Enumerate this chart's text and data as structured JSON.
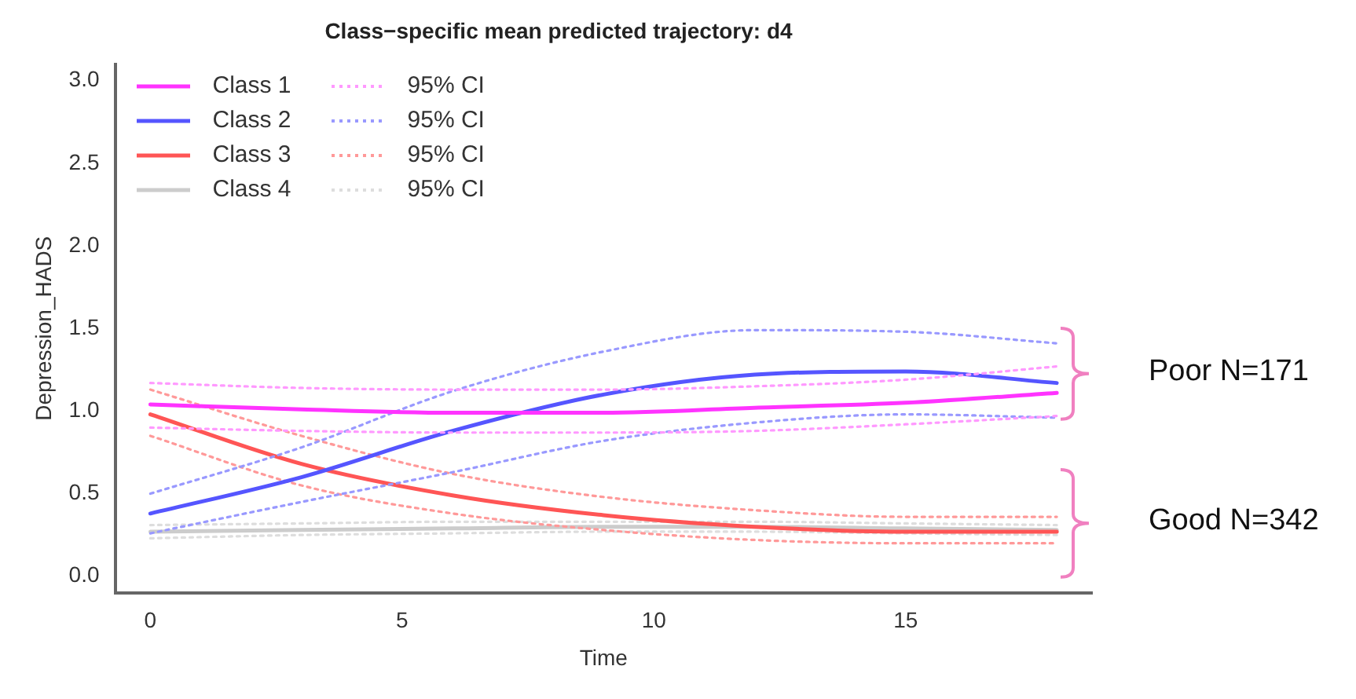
{
  "chart_data": {
    "type": "line",
    "title": "Class−specific mean predicted trajectory: d4",
    "xlabel": "Time",
    "ylabel": "Depression_HADS",
    "x": [
      0,
      3,
      6,
      9,
      12,
      15,
      18
    ],
    "xlim": [
      -0.7,
      18.7
    ],
    "xticks": [
      0,
      5,
      10,
      15
    ],
    "ylim": [
      -0.1,
      3.1
    ],
    "yticks": [
      {
        "value": 0,
        "label": "0.0"
      },
      {
        "value": 0.5,
        "label": "0.5"
      },
      {
        "value": 1,
        "label": "1.0"
      },
      {
        "value": 1.5,
        "label": "1.5"
      },
      {
        "value": 2,
        "label": "2.0"
      },
      {
        "value": 2.5,
        "label": "2.5"
      },
      {
        "value": 3,
        "label": "3.0"
      }
    ],
    "grid": false,
    "legend": "top left",
    "marker": "none",
    "annotations": [
      "Poor N=171",
      "Good N=342"
    ],
    "series": [
      {
        "name": "Class 1",
        "color": "#ff33ff",
        "line_style": "solid",
        "values": [
          1.04,
          1.01,
          0.99,
          0.99,
          1.02,
          1.05,
          1.11
        ]
      },
      {
        "name": "95% CI",
        "color": "#ff99ff",
        "line_style": "dotted",
        "values": [
          1.17,
          1.14,
          1.13,
          1.13,
          1.15,
          1.19,
          1.27
        ]
      },
      {
        "color": "#ff99ff",
        "line_style": "dotted",
        "values": [
          0.9,
          0.88,
          0.87,
          0.87,
          0.88,
          0.92,
          0.97
        ]
      },
      {
        "name": "Class 2",
        "color": "#5555ff",
        "line_style": "solid",
        "values": [
          0.38,
          0.6,
          0.88,
          1.1,
          1.22,
          1.24,
          1.17
        ]
      },
      {
        "name": "95% CI",
        "color": "#9999ff",
        "line_style": "dotted",
        "values": [
          0.5,
          0.78,
          1.12,
          1.36,
          1.49,
          1.48,
          1.41
        ]
      },
      {
        "color": "#9999ff",
        "line_style": "dotted",
        "values": [
          0.26,
          0.45,
          0.63,
          0.82,
          0.93,
          0.98,
          0.96
        ]
      },
      {
        "name": "Class 3",
        "color": "#ff5555",
        "line_style": "solid",
        "values": [
          0.98,
          0.68,
          0.49,
          0.37,
          0.3,
          0.27,
          0.27
        ]
      },
      {
        "name": "95% CI",
        "color": "#ff9999",
        "line_style": "dotted",
        "values": [
          1.13,
          0.85,
          0.62,
          0.48,
          0.4,
          0.36,
          0.36
        ]
      },
      {
        "color": "#ff9999",
        "line_style": "dotted",
        "values": [
          0.85,
          0.55,
          0.38,
          0.28,
          0.22,
          0.2,
          0.2
        ]
      },
      {
        "name": "Class 4",
        "color": "#cccccc",
        "line_style": "solid",
        "values": [
          0.27,
          0.28,
          0.29,
          0.3,
          0.3,
          0.29,
          0.28
        ]
      },
      {
        "name": "95% CI",
        "color": "#dddddd",
        "line_style": "dotted",
        "values": [
          0.31,
          0.32,
          0.33,
          0.33,
          0.33,
          0.32,
          0.31
        ]
      },
      {
        "color": "#dddddd",
        "line_style": "dotted",
        "values": [
          0.23,
          0.25,
          0.26,
          0.27,
          0.27,
          0.26,
          0.25
        ]
      }
    ]
  }
}
